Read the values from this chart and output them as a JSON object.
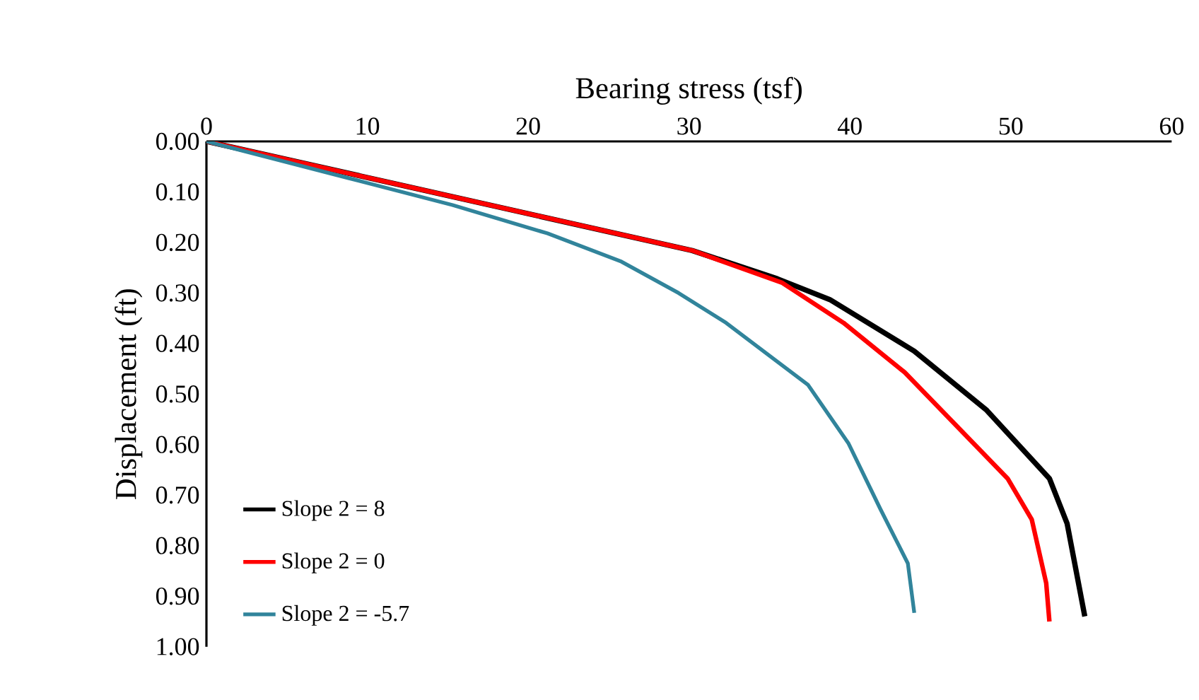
{
  "chart_data": {
    "type": "line",
    "xlabel": "Bearing stress (tsf)",
    "ylabel": "Displacement (ft)",
    "xlim": [
      0,
      60
    ],
    "xticks": [
      0,
      10,
      20,
      30,
      40,
      50,
      60
    ],
    "ylim": [
      1,
      0
    ],
    "yticks": [
      {
        "value": 0,
        "label": "0.00"
      },
      {
        "value": 0.1,
        "label": "0.10"
      },
      {
        "value": 0.2,
        "label": "0.20"
      },
      {
        "value": 0.3,
        "label": "0.30"
      },
      {
        "value": 0.4,
        "label": "0.40"
      },
      {
        "value": 0.5,
        "label": "0.50"
      },
      {
        "value": 0.6,
        "label": "0.60"
      },
      {
        "value": 0.7,
        "label": "0.70"
      },
      {
        "value": 0.8,
        "label": "0.80"
      },
      {
        "value": 0.9,
        "label": "0.90"
      },
      {
        "value": 1,
        "label": "1.00"
      }
    ],
    "grid": false,
    "legend": "bottom left",
    "marker": "none",
    "line_style": "solid",
    "series": [
      {
        "name": "Slope 2 = 8",
        "color": "#000000",
        "x": [
          0,
          30.2,
          35.5,
          38.75,
          44.0,
          48.5,
          52.4,
          53.5,
          54.6
        ],
        "values": [
          0,
          0.216,
          0.272,
          0.313,
          0.415,
          0.532,
          0.667,
          0.756,
          0.94
        ]
      },
      {
        "name": "Slope 2 = 0",
        "color": "#ff0000",
        "x": [
          0,
          30.2,
          35.8,
          39.6,
          43.4,
          49.8,
          51.3,
          52.2,
          52.4
        ],
        "values": [
          0,
          0.216,
          0.28,
          0.359,
          0.457,
          0.667,
          0.748,
          0.874,
          0.95
        ]
      },
      {
        "name": "Slope 2 = -5.7",
        "color": "#31849b",
        "x": [
          0,
          15.3,
          21.2,
          25.8,
          29.35,
          32.3,
          37.4,
          39.9,
          41.9,
          43.6,
          44.0
        ],
        "values": [
          0,
          0.126,
          0.182,
          0.238,
          0.3,
          0.359,
          0.482,
          0.597,
          0.728,
          0.835,
          0.933
        ]
      }
    ]
  }
}
